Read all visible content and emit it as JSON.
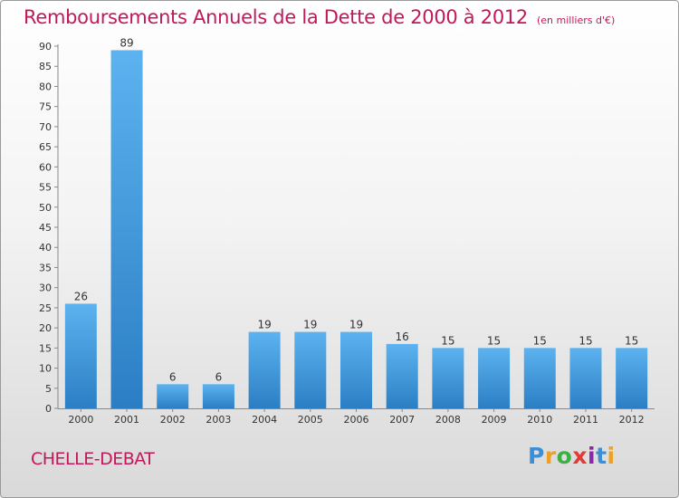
{
  "title": "Remboursements Annuels de la Dette de 2000 à 2012",
  "unit_note": "(en milliers d'€)",
  "commune": "CHELLE-DEBAT",
  "logo": {
    "letters": [
      "P",
      "r",
      "o",
      "x",
      "i",
      "t",
      "i"
    ],
    "colors": [
      "#3b8ed8",
      "#f0a020",
      "#3cb043",
      "#e53935",
      "#8e24aa",
      "#3b8ed8",
      "#f0a020"
    ]
  },
  "colors": {
    "bar_light": "#5cb3ef",
    "bar_dark": "#2b7ec4",
    "title": "#c2185b"
  },
  "chart_data": {
    "type": "bar",
    "categories": [
      "2000",
      "2001",
      "2002",
      "2003",
      "2004",
      "2005",
      "2006",
      "2007",
      "2008",
      "2009",
      "2010",
      "2011",
      "2012"
    ],
    "values": [
      26,
      89,
      6,
      6,
      19,
      19,
      19,
      16,
      15,
      15,
      15,
      15,
      15
    ],
    "ylim": [
      0,
      90
    ],
    "yticks": [
      0,
      5,
      10,
      15,
      20,
      25,
      30,
      35,
      40,
      45,
      50,
      55,
      60,
      65,
      70,
      75,
      80,
      85,
      90
    ],
    "data_labels": true,
    "grid": false
  }
}
